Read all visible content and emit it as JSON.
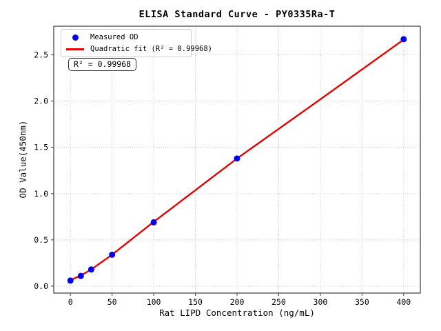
{
  "figure": {
    "background": "#ffffff"
  },
  "chart_data": {
    "type": "scatter",
    "title": "ELISA Standard Curve - PY0335Ra-T",
    "xlabel": "Rat LIPD Concentration (ng/mL)",
    "ylabel": "OD Value(450nm)",
    "xlim": [
      -20,
      420
    ],
    "ylim": [
      -0.075,
      2.81
    ],
    "xticks": [
      0,
      50,
      100,
      150,
      200,
      250,
      300,
      350,
      400
    ],
    "xtick_labels": [
      "0",
      "50",
      "100",
      "150",
      "200",
      "250",
      "300",
      "350",
      "400"
    ],
    "yticks": [
      0.0,
      0.5,
      1.0,
      1.5,
      2.0,
      2.5
    ],
    "ytick_labels": [
      "0.0",
      "0.5",
      "1.0",
      "1.5",
      "2.0",
      "2.5"
    ],
    "grid": true,
    "grid_style": "dotted",
    "legend_position": "upper left",
    "series": [
      {
        "name": "Measured OD",
        "type": "scatter",
        "marker": "circle",
        "color": "#0000ee",
        "x": [
          0,
          12.5,
          25,
          50,
          100,
          200,
          400
        ],
        "y": [
          0.06,
          0.11,
          0.18,
          0.34,
          0.69,
          1.38,
          2.67
        ]
      },
      {
        "name": "Quadratic fit (R² = 0.99968)",
        "type": "line",
        "color": "#e60000",
        "linewidth": 2,
        "x": [
          0,
          12.5,
          25,
          50,
          100,
          200,
          300,
          400
        ],
        "y": [
          0.065,
          0.115,
          0.18,
          0.34,
          0.695,
          1.38,
          2.02,
          2.665
        ]
      }
    ],
    "annotation": {
      "text": "R² = 0.99968"
    },
    "r_squared": 0.99968
  },
  "colors": {
    "grid": "#c9c9c9",
    "spine": "#3a3a3a",
    "text": "#000000",
    "legend_border": "#cccccc",
    "annotation_border": "#2b2b2b"
  }
}
